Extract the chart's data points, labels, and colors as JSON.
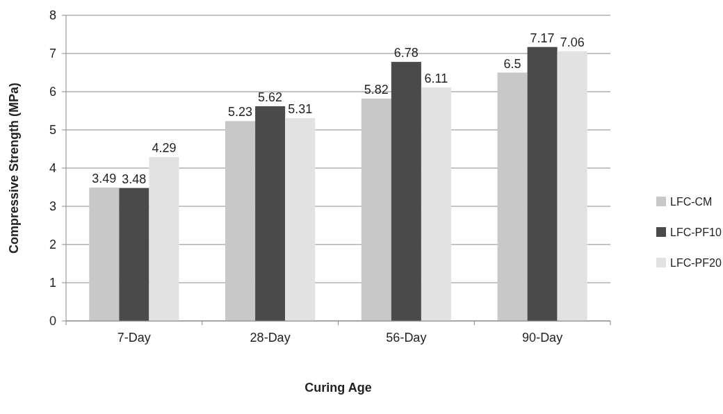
{
  "chart_data": {
    "type": "bar",
    "xlabel": "Curing Age",
    "ylabel": "Compressive Strength (MPa)",
    "categories": [
      "7-Day",
      "28-Day",
      "56-Day",
      "90-Day"
    ],
    "series": [
      {
        "name": "LFC-CM",
        "color": "#c8c8c8",
        "values": [
          3.49,
          5.23,
          5.82,
          6.5
        ]
      },
      {
        "name": "LFC-PF10",
        "color": "#4a4a4a",
        "values": [
          3.48,
          5.62,
          6.78,
          7.17
        ]
      },
      {
        "name": "LFC-PF20",
        "color": "#e2e2e2",
        "values": [
          4.29,
          5.31,
          6.11,
          7.06
        ]
      }
    ],
    "ylim": [
      0,
      8
    ],
    "yticks": [
      0,
      1,
      2,
      3,
      4,
      5,
      6,
      7,
      8
    ],
    "grid": "y",
    "legend": "right",
    "data_labels": true
  }
}
